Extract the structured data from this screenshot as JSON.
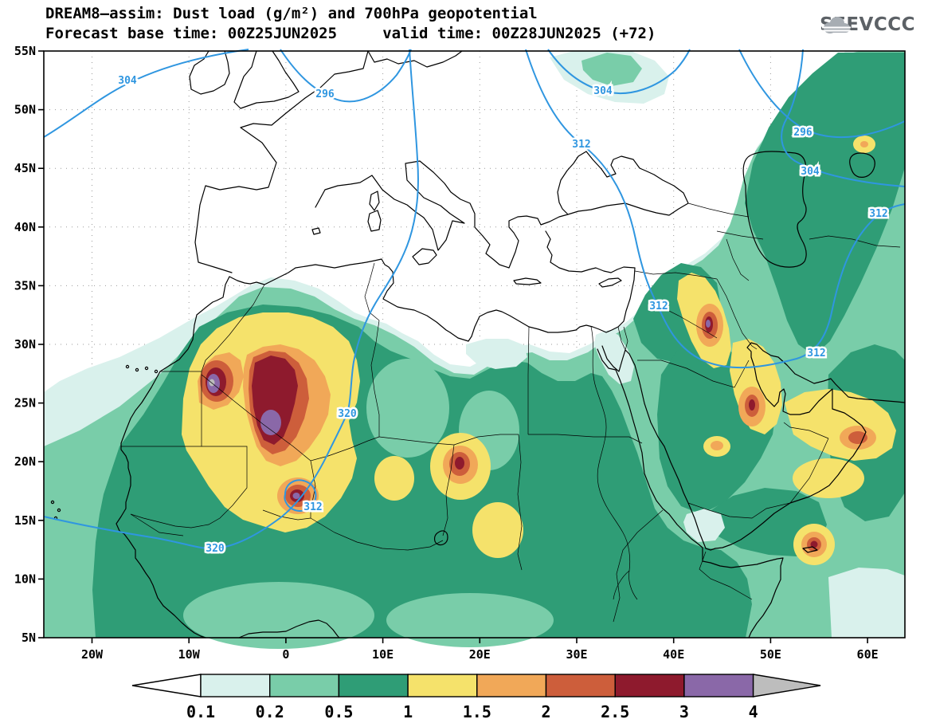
{
  "header": {
    "title_line1": "DREAM8—assim: Dust load (g/m²) and 700hPa geopotential",
    "title_line2": "Forecast base time: 00Z25JUN2025     valid time: 00Z28JUN2025 (+72)",
    "logo_text": "SEEVCCC"
  },
  "chart_data": {
    "type": "heatmap",
    "title": "DREAM8-assim: Dust load (g/m²) and 700hPa geopotential",
    "model": "DREAM8-assim",
    "field": "Dust load",
    "field_units": "g/m²",
    "overlay_field": "700hPa geopotential",
    "forecast_base_time": "00Z25JUN2025",
    "valid_time": "00Z28JUN2025",
    "lead": "+72",
    "x_axis": {
      "ticks": [
        "20W",
        "10W",
        "0",
        "10E",
        "20E",
        "30E",
        "40E",
        "50E",
        "60E"
      ]
    },
    "y_axis": {
      "ticks": [
        "55N",
        "50N",
        "45N",
        "40N",
        "35N",
        "30N",
        "25N",
        "20N",
        "15N",
        "10N",
        "5N"
      ]
    },
    "colorbar": {
      "levels": [
        "0.1",
        "0.2",
        "0.5",
        "1",
        "1.5",
        "2",
        "2.5",
        "3",
        "4"
      ],
      "segment_colors": [
        "#ffffff",
        "#d9f1ec",
        "#79cda9",
        "#2f9d76",
        "#f5e26b",
        "#f1a858",
        "#cd5e3b",
        "#8e1a2d",
        "#8a68a8",
        "#bdbdbd"
      ],
      "under_color": "#ffffff",
      "over_color": "#bdbdbd"
    },
    "contours": {
      "line_color": "#2f96e0",
      "labels": [
        "304",
        "296",
        "304",
        "296",
        "304",
        "312",
        "312",
        "312",
        "312",
        "320",
        "320",
        "312"
      ]
    }
  }
}
